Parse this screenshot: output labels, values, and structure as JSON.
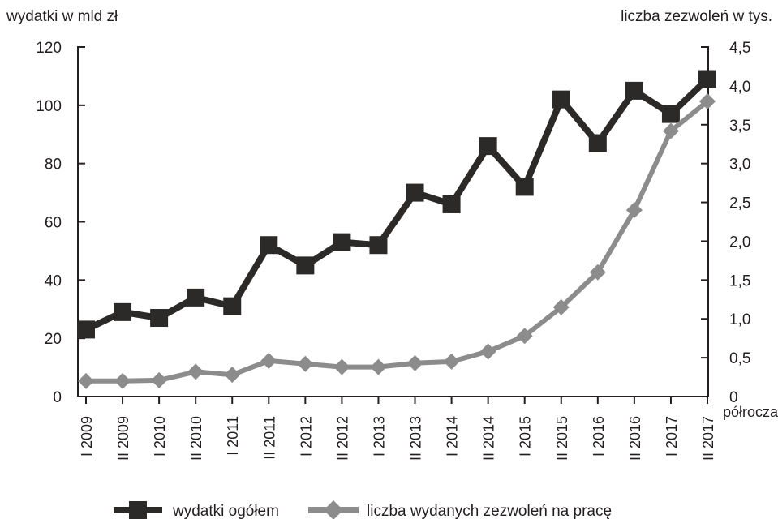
{
  "chart_data": {
    "type": "line",
    "left_axis_title": "wydatki w mld zł",
    "right_axis_title": "liczba zezwoleń w tys.",
    "x_axis_title": "półrocza",
    "categories": [
      "I 2009",
      "II 2009",
      "I 2010",
      "II 2010",
      "I 2011",
      "II 2011",
      "I 2012",
      "II 2012",
      "I 2013",
      "II 2013",
      "I 2014",
      "II 2014",
      "I 2015",
      "II 2015",
      "I 2016",
      "II 2016",
      "I 2017",
      "II 2017"
    ],
    "y_left": {
      "min": 0,
      "max": 120,
      "ticks": [
        "0",
        "20",
        "40",
        "60",
        "80",
        "100",
        "120"
      ]
    },
    "y_right": {
      "min": 0,
      "max": 4.5,
      "ticks": [
        "0",
        "0,5",
        "1,0",
        "1,5",
        "2,0",
        "2,5",
        "3,0",
        "3,5",
        "4,0",
        "4,5"
      ]
    },
    "series": [
      {
        "name": "wydatki ogółem",
        "axis": "left",
        "color": "#2b2a29",
        "marker": "square",
        "values": [
          23,
          29,
          27,
          34,
          31,
          52,
          45,
          53,
          52,
          70,
          66,
          86,
          72,
          102,
          87,
          105,
          97,
          109
        ]
      },
      {
        "name": "liczba wydanych zezwoleń na pracę",
        "axis": "right",
        "color": "#8c8c8c",
        "marker": "diamond",
        "values": [
          0.2,
          0.2,
          0.21,
          0.32,
          0.28,
          0.46,
          0.42,
          0.38,
          0.38,
          0.43,
          0.45,
          0.58,
          0.78,
          1.15,
          1.6,
          2.4,
          3.42,
          3.8
        ]
      }
    ],
    "grid": false,
    "legend_position": "bottom"
  }
}
